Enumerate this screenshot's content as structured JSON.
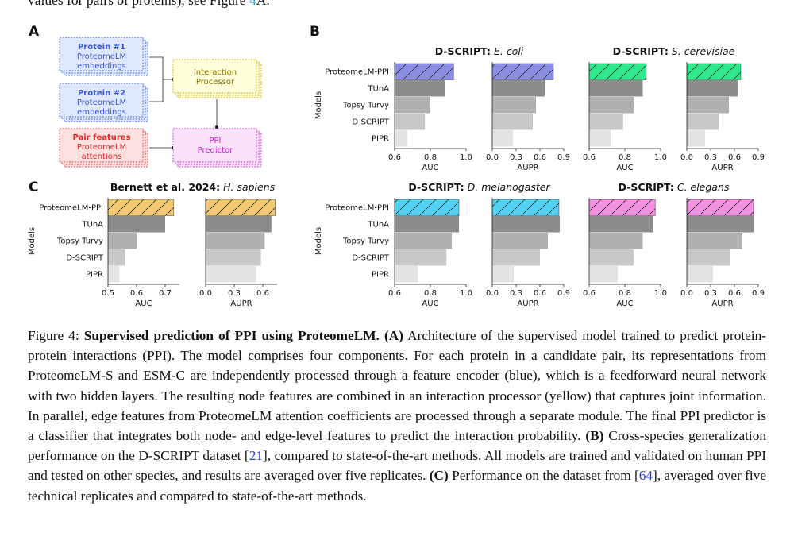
{
  "intro": {
    "segments": [
      {
        "text": "values for pairs of proteins), see Figure "
      },
      {
        "text": "4",
        "style": "link"
      },
      {
        "text": "A."
      }
    ]
  },
  "panel_labels": [
    "A",
    "B",
    "C"
  ],
  "diagram": {
    "nodes": [
      {
        "title": "Protein #1",
        "lines": [
          "ProteomeLM",
          "embeddings"
        ]
      },
      {
        "title": "Protein #2",
        "lines": [
          "ProteomeLM",
          "embeddings"
        ]
      },
      {
        "title": "Pair features",
        "lines": [
          "ProteomeLM",
          "attentions"
        ]
      },
      {
        "lines": [
          "Interaction",
          "Processor"
        ]
      },
      {
        "lines": [
          "PPI",
          "Predictor"
        ]
      }
    ]
  },
  "chart_data": [
    {
      "type": "barh-pair",
      "title": "D-SCRIPT:",
      "species": "E. coli",
      "ylabel": "Models",
      "categories": [
        "ProteomeLM-PPI",
        "TUnA",
        "Topsy Turvy",
        "D-SCRIPT",
        "PIPR"
      ],
      "colors": [
        "#8c8ee6",
        "#8c8c8c",
        "#b0b0b0",
        "#c8c8c8",
        "#e3e3e3"
      ],
      "panels": [
        {
          "xlabel": "AUC",
          "values": [
            0.93,
            0.88,
            0.8,
            0.77,
            0.67
          ],
          "xlim": [
            0.6,
            1.0
          ],
          "xticks": [
            0.6,
            0.8,
            {
              "value": 1,
              "label": "1.0"
            }
          ]
        },
        {
          "xlabel": "AUPR",
          "values": [
            0.77,
            0.66,
            0.55,
            0.51,
            0.26
          ],
          "xlim": [
            0,
            0.9
          ],
          "xticks": [
            {
              "value": 0,
              "label": "0.0"
            },
            0.3,
            0.6,
            0.9
          ]
        }
      ]
    },
    {
      "type": "barh-pair",
      "title": "D-SCRIPT:",
      "species": "S. cerevisiae",
      "colors": [
        "#2ee88c",
        "#8c8c8c",
        "#b0b0b0",
        "#c8c8c8",
        "#e3e3e3"
      ],
      "panels": [
        {
          "xlabel": "AUC",
          "values": [
            0.92,
            0.9,
            0.85,
            0.79,
            0.72
          ],
          "xlim": [
            0.6,
            1.0
          ],
          "xticks": [
            0.6,
            0.8,
            {
              "value": 1,
              "label": "1.0"
            }
          ]
        },
        {
          "xlabel": "AUPR",
          "values": [
            0.68,
            0.64,
            0.53,
            0.4,
            0.23
          ],
          "xlim": [
            0,
            0.9
          ],
          "xticks": [
            {
              "value": 0,
              "label": "0.0"
            },
            0.3,
            0.6,
            0.9
          ]
        }
      ]
    },
    {
      "type": "barh-pair",
      "title": "D-SCRIPT:",
      "species": "D. melanogaster",
      "ylabel": "Models",
      "categories": [
        "ProteomeLM-PPI",
        "TUnA",
        "Topsy Turvy",
        "D-SCRIPT",
        "PIPR"
      ],
      "colors": [
        "#52d2f2",
        "#8c8c8c",
        "#b0b0b0",
        "#c8c8c8",
        "#e3e3e3"
      ],
      "panels": [
        {
          "xlabel": "AUC",
          "values": [
            0.96,
            0.96,
            0.92,
            0.89,
            0.73
          ],
          "xlim": [
            0.6,
            1.0
          ],
          "xticks": [
            0.6,
            0.8,
            {
              "value": 1,
              "label": "1.0"
            }
          ]
        },
        {
          "xlabel": "AUPR",
          "values": [
            0.84,
            0.85,
            0.7,
            0.6,
            0.27
          ],
          "xlim": [
            0,
            0.9
          ],
          "xticks": [
            {
              "value": 0,
              "label": "0.0"
            },
            0.3,
            0.6,
            0.9
          ]
        }
      ]
    },
    {
      "type": "barh-pair",
      "title": "D-SCRIPT:",
      "species": "C. elegans",
      "colors": [
        "#f290e2",
        "#8c8c8c",
        "#b0b0b0",
        "#c8c8c8",
        "#e3e3e3"
      ],
      "panels": [
        {
          "xlabel": "AUC",
          "values": [
            0.97,
            0.96,
            0.9,
            0.85,
            0.76
          ],
          "xlim": [
            0.6,
            1.0
          ],
          "xticks": [
            0.6,
            0.8,
            {
              "value": 1,
              "label": "1.0"
            }
          ]
        },
        {
          "xlabel": "AUPR",
          "values": [
            0.84,
            0.84,
            0.7,
            0.55,
            0.33
          ],
          "xlim": [
            0,
            0.9
          ],
          "xticks": [
            {
              "value": 0,
              "label": "0.0"
            },
            0.3,
            0.6,
            0.9
          ]
        }
      ]
    },
    {
      "type": "barh-pair",
      "title": "Bernett et al. 2024:",
      "species": "H. sapiens",
      "ylabel": "Models",
      "categories": [
        "ProteomeLM-PPI",
        "TUnA",
        "Topsy Turvy",
        "D-SCRIPT",
        "PIPR"
      ],
      "colors": [
        "#f2c872",
        "#8c8c8c",
        "#b0b0b0",
        "#c8c8c8",
        "#e3e3e3"
      ],
      "panels": [
        {
          "xlabel": "AUC",
          "values": [
            0.73,
            0.7,
            0.6,
            0.56,
            0.54
          ],
          "xlim": [
            0.5,
            0.75
          ],
          "xticks": [
            0.5,
            0.6,
            0.7
          ]
        },
        {
          "xlabel": "AUPR",
          "values": [
            0.73,
            0.69,
            0.62,
            0.58,
            0.53
          ],
          "xlim": [
            0,
            0.75
          ],
          "xticks": [
            {
              "value": 0,
              "label": "0.0"
            },
            0.3,
            0.6
          ]
        }
      ]
    }
  ],
  "caption": {
    "segments": [
      {
        "text": "Figure 4: "
      },
      {
        "text": "Supervised prediction of PPI using ProteomeLM.",
        "style": "bold"
      },
      {
        "text": " "
      },
      {
        "text": "(A)",
        "style": "bold"
      },
      {
        "text": " Architecture of the supervised model trained to predict protein-protein interactions (PPI). The model comprises four components. For each protein in a candidate pair, its representations from ProteomeLM-S and ESM-C are independently processed through a feature encoder (blue), which is a feedforward neural network with two hidden layers. The resulting node features are combined in an interaction processor (yellow) that captures joint information. In parallel, edge features from ProteomeLM attention coefficients are processed through a separate module. The final PPI predictor is a classifier that integrates both node- and edge-level features to predict the interaction probability. "
      },
      {
        "text": "(B)",
        "style": "bold"
      },
      {
        "text": " Cross-species generalization performance on the D-SCRIPT dataset ["
      },
      {
        "text": "21",
        "style": "link"
      },
      {
        "text": "], compared to state-of-the-art methods. All models are trained and validated on human PPI and tested on other species, and results are averaged over five replicates. "
      },
      {
        "text": "(C)",
        "style": "bold"
      },
      {
        "text": " Performance on the dataset from ["
      },
      {
        "text": "64",
        "style": "link"
      },
      {
        "text": "], averaged over five technical replicates and compared to state-of-the-art methods."
      }
    ]
  }
}
